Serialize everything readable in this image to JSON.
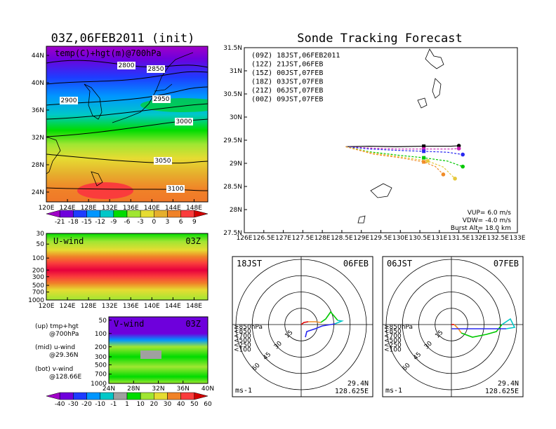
{
  "titles": {
    "left": "03Z,06FEB2011 (init)",
    "right": "Sonde Tracking Forecast"
  },
  "chart_data": [
    {
      "type": "heatmap",
      "name": "map-temp-hgt",
      "label": "temp(C)+hgt(m)@700hPa",
      "x_ticks": [
        "120E",
        "124E",
        "128E",
        "132E",
        "136E",
        "140E",
        "144E",
        "148E"
      ],
      "y_ticks": [
        "24N",
        "28N",
        "32N",
        "36N",
        "40N",
        "44N"
      ],
      "contours": [
        {
          "value": "2800"
        },
        {
          "value": "2850"
        },
        {
          "value": "2900"
        },
        {
          "value": "2950"
        },
        {
          "value": "3000"
        },
        {
          "value": "3050"
        },
        {
          "value": "3100"
        }
      ],
      "colorbar": [
        "-21",
        "-18",
        "-15",
        "-12",
        "-9",
        "-6",
        "-3",
        "0",
        "3",
        "6",
        "9"
      ],
      "colors": [
        "#a000c8",
        "#6e00dc",
        "#1e3cff",
        "#0096ff",
        "#00c8c8",
        "#00dc00",
        "#a0e632",
        "#e6dc32",
        "#e6af2d",
        "#f08228",
        "#fa3c3c",
        "#d20000"
      ]
    },
    {
      "type": "heatmap",
      "name": "u-wind",
      "label": "U-wind",
      "time": "03Z",
      "x_ticks": [
        "120E",
        "124E",
        "128E",
        "132E",
        "136E",
        "140E",
        "144E",
        "148E"
      ],
      "y_ticks": [
        "30",
        "50",
        "100",
        "200",
        "300",
        "500",
        "700",
        "1000"
      ]
    },
    {
      "type": "heatmap",
      "name": "v-wind",
      "label": "V-wind",
      "time": "03Z",
      "x_ticks": [
        "24N",
        "28N",
        "32N",
        "36N",
        "40N"
      ],
      "y_ticks": [
        "50",
        "100",
        "200",
        "300",
        "500",
        "700",
        "1000"
      ],
      "colorbar": [
        "-40",
        "-30",
        "-20",
        "-10",
        "-1",
        "1",
        "10",
        "20",
        "30",
        "40",
        "50",
        "60"
      ],
      "colors": [
        "#a000c8",
        "#6e00dc",
        "#1e3cff",
        "#0096ff",
        "#00c8c8",
        "#a0a0a0",
        "#00dc00",
        "#a0e632",
        "#e6dc32",
        "#f08228",
        "#fa3c3c",
        "#d20000"
      ]
    },
    {
      "type": "line",
      "name": "sonde-tracks",
      "xlim": [
        126,
        133
      ],
      "ylim": [
        27.5,
        31.5
      ],
      "x_ticks": [
        "126E",
        "126.5E",
        "127E",
        "127.5E",
        "128E",
        "128.5E",
        "129E",
        "129.5E",
        "130E",
        "130.5E",
        "131E",
        "131.5E",
        "132E",
        "132.5E",
        "133E"
      ],
      "y_ticks": [
        "27.5N",
        "28N",
        "28.5N",
        "29N",
        "29.5N",
        "30N",
        "30.5N",
        "31N",
        "31.5N"
      ],
      "series": [
        {
          "name": "(09Z)  18JST,06FEB2011",
          "color": "#000000",
          "x": [
            128.6,
            129.2,
            129.9,
            130.6,
            131.3,
            131.5
          ],
          "y": [
            29.36,
            29.37,
            29.36,
            29.37,
            29.37,
            29.38
          ]
        },
        {
          "name": "(12Z)  21JST,06FEB",
          "color": "#c81eb4",
          "x": [
            128.6,
            129.2,
            129.9,
            130.6,
            131.3,
            131.5
          ],
          "y": [
            29.36,
            29.33,
            29.31,
            29.31,
            29.31,
            29.32
          ]
        },
        {
          "name": "(15Z)  00JST,07FEB",
          "color": "#2828f0",
          "x": [
            128.6,
            129.2,
            129.9,
            130.6,
            131.2,
            131.6
          ],
          "y": [
            29.36,
            29.31,
            29.28,
            29.26,
            29.24,
            29.19
          ]
        },
        {
          "name": "(18Z)  03JST,07FEB",
          "color": "#00c800",
          "x": [
            128.6,
            129.2,
            129.9,
            130.6,
            131.2,
            131.6
          ],
          "y": [
            29.36,
            29.25,
            29.18,
            29.12,
            29.05,
            28.93
          ]
        },
        {
          "name": "(21Z)  06JST,07FEB",
          "color": "#e6c83c",
          "x": [
            128.6,
            129.3,
            130.0,
            130.7,
            131.1,
            131.4
          ],
          "y": [
            29.36,
            29.22,
            29.14,
            29.05,
            28.92,
            28.67
          ]
        },
        {
          "name": "(00Z)  09JST,07FEB",
          "color": "#f08c28",
          "x": [
            128.6,
            129.3,
            130.0,
            130.6,
            130.9,
            131.1
          ],
          "y": [
            29.36,
            29.2,
            29.12,
            29.03,
            28.93,
            28.76
          ]
        }
      ],
      "annotations": [
        "VUP= 6.0 m/s",
        "VDW= -4.0 m/s",
        "Burst Alt= 18.0 km"
      ]
    },
    {
      "type": "scatter",
      "name": "hodograph-left",
      "left_label": "18JST",
      "right_label": "06FEB",
      "rings": [
        "15",
        "30",
        "45",
        "60"
      ],
      "levels": [
        "≥850hPa",
        "<850",
        "<700",
        "<500",
        "<250",
        "<100"
      ],
      "level_colors": [
        "#e00000",
        "#f08c28",
        "#e6c83c",
        "#00c800",
        "#00c8c8",
        "#2828f0"
      ],
      "footer_left": "ms-1",
      "footer_right": [
        "29.4N",
        "128.625E"
      ]
    },
    {
      "type": "scatter",
      "name": "hodograph-right",
      "left_label": "06JST",
      "right_label": "07FEB",
      "rings": [
        "15",
        "30",
        "45",
        "60"
      ],
      "levels": [
        "≥850hPa",
        "<850",
        "<700",
        "<500",
        "<250",
        "<100"
      ],
      "level_colors": [
        "#e00000",
        "#f08c28",
        "#e6c83c",
        "#00c800",
        "#00c8c8",
        "#2828f0"
      ],
      "footer_left": "ms-1",
      "footer_right": [
        "29.4N",
        "128.625E"
      ]
    }
  ],
  "legend_notes": [
    {
      "a": "(up) tmp+hgt",
      "b": "@700hPa"
    },
    {
      "a": "(mid) u-wind",
      "b": "@29.36N"
    },
    {
      "a": "(bot) v-wind",
      "b": "@128.66E"
    }
  ]
}
